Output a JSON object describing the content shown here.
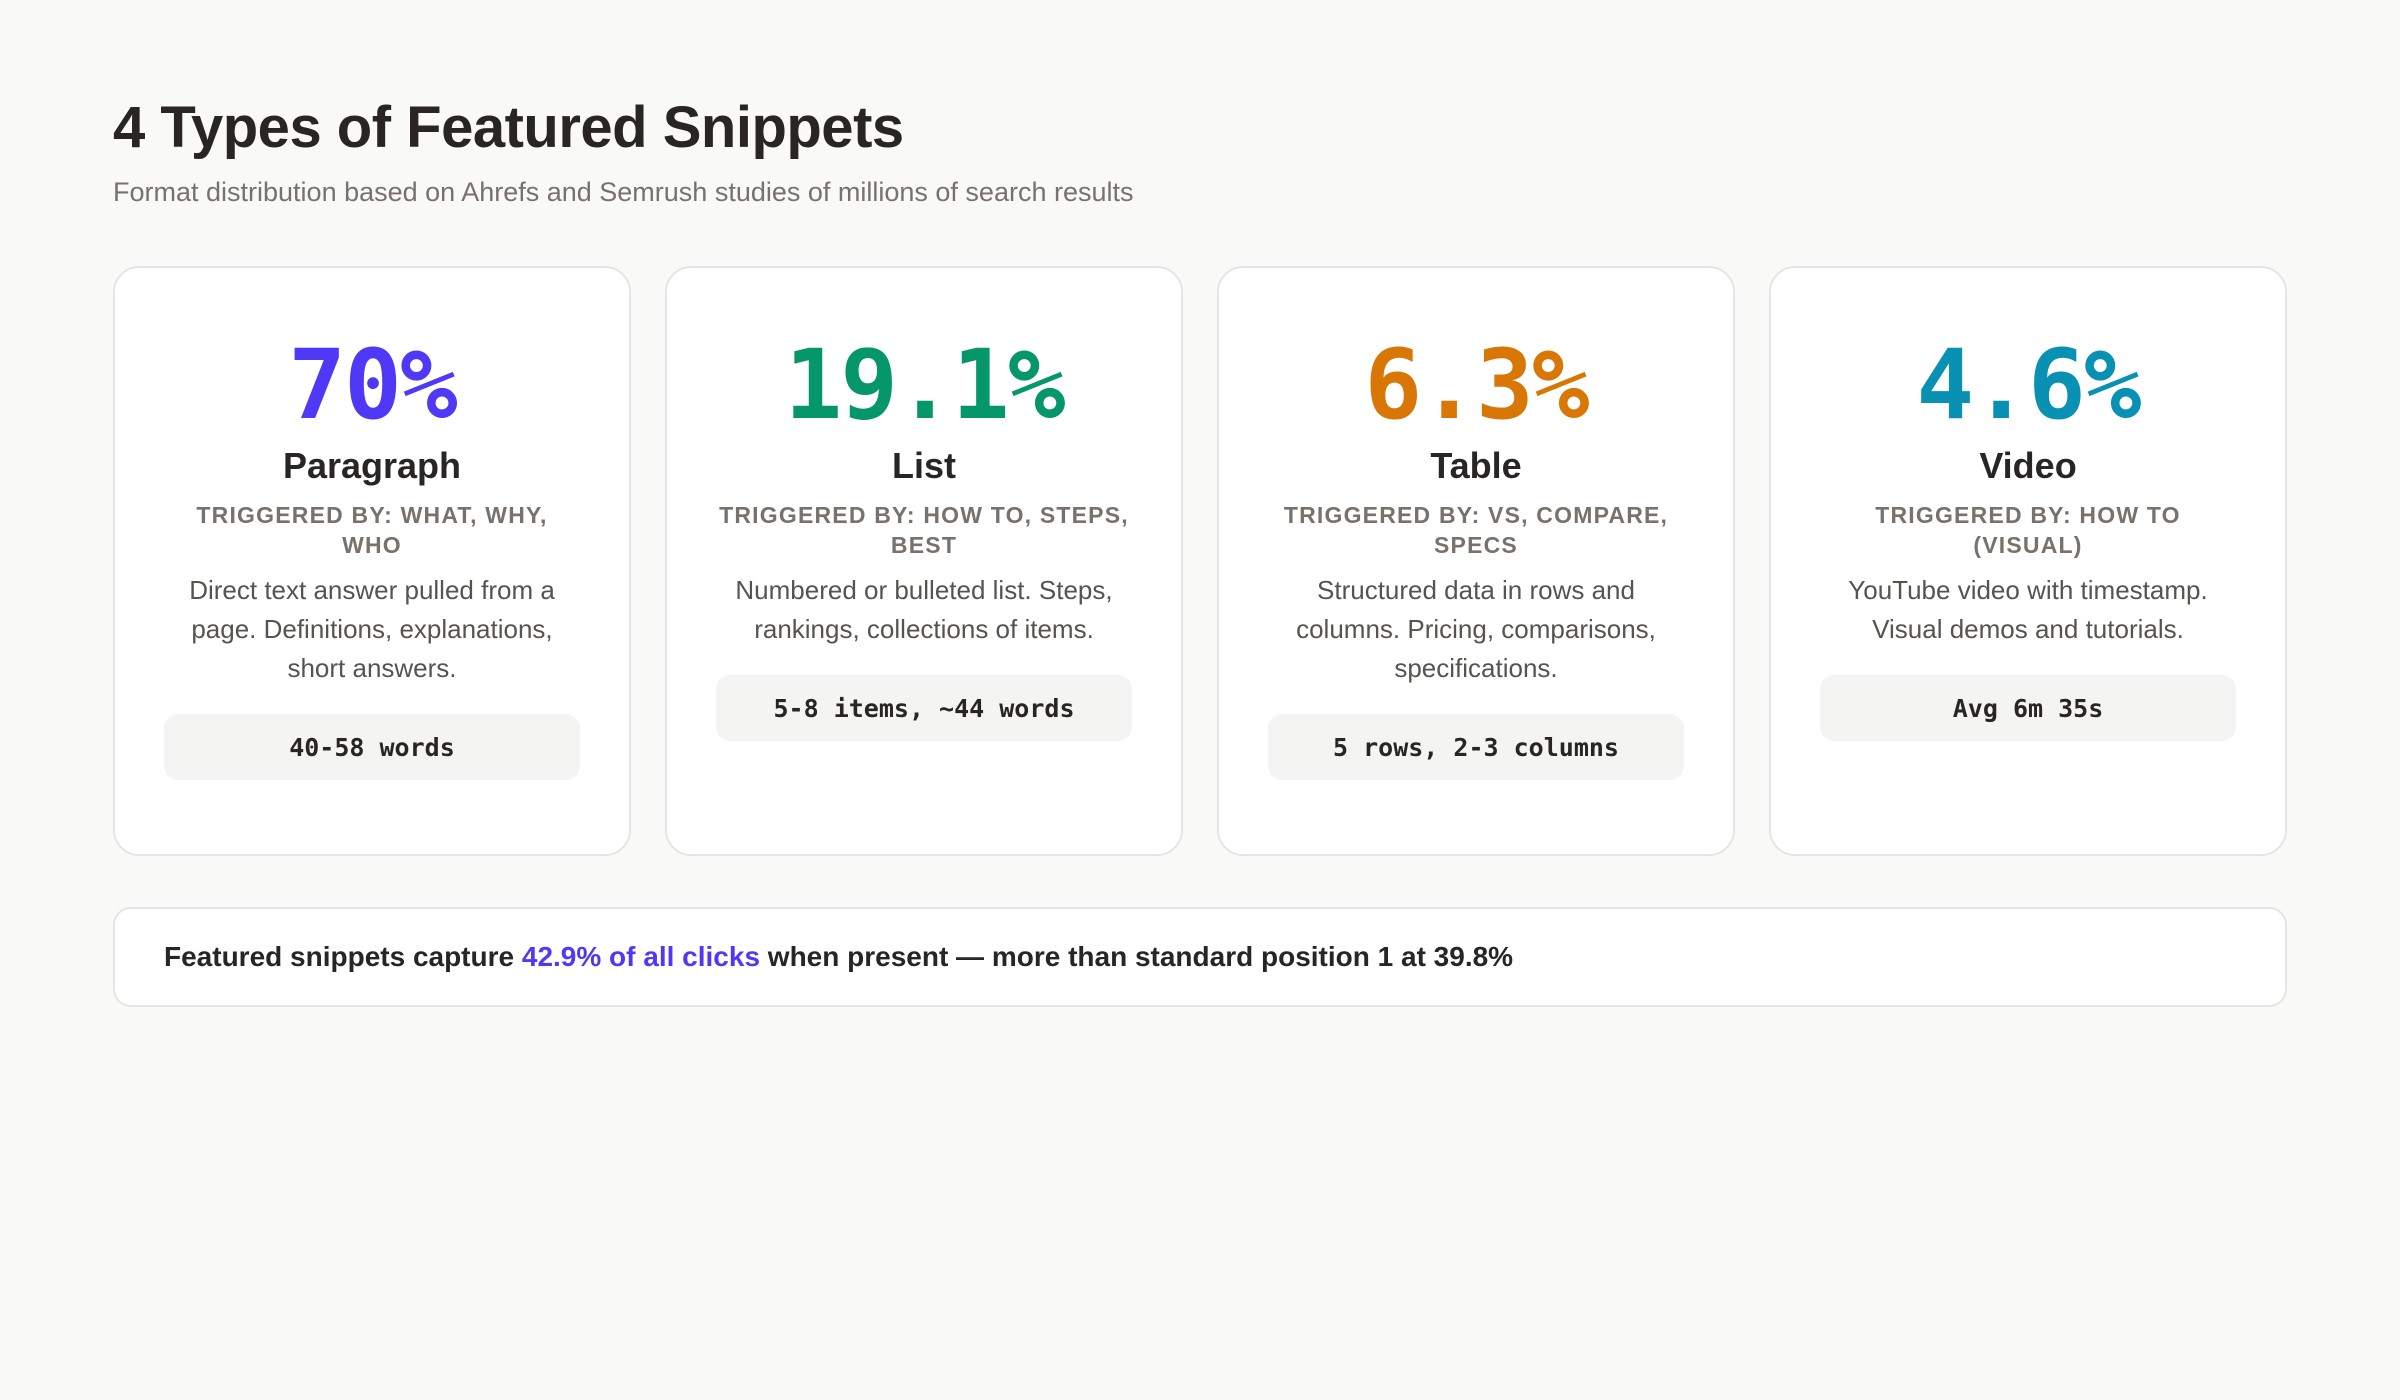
{
  "header": {
    "title": "4 Types of Featured Snippets",
    "subtitle": "Format distribution based on Ahrefs and Semrush studies of millions of search results"
  },
  "colors": {
    "paragraph": "#4f39f6",
    "list": "#059669",
    "table": "#d97706",
    "video": "#0891b2",
    "background": "#f9f9f7",
    "card_border": "#e7e5e3",
    "pill_background": "#f4f4f3"
  },
  "cards": [
    {
      "value": "70%",
      "label": "Paragraph",
      "trigger": "Triggered by: What, Why, Who",
      "description": "Direct text answer pulled from a page. Definitions, explanations, short answers.",
      "stat": "40-58 words",
      "color": "#4f39f6"
    },
    {
      "value": "19.1%",
      "label": "List",
      "trigger": "Triggered by: How to, Steps, Best",
      "description": "Numbered or bulleted list. Steps, rankings, collections of items.",
      "stat": "5-8 items, ~44 words",
      "color": "#059669"
    },
    {
      "value": "6.3%",
      "label": "Table",
      "trigger": "Triggered by: vs, Compare, Specs",
      "description": "Structured data in rows and columns. Pricing, comparisons, specifications.",
      "stat": "5 rows, 2-3 columns",
      "color": "#d97706"
    },
    {
      "value": "4.6%",
      "label": "Video",
      "trigger": "Triggered by: How to (visual)",
      "description": "YouTube video with timestamp. Visual demos and tutorials.",
      "stat": "Avg 6m 35s",
      "color": "#0891b2"
    }
  ],
  "callout": {
    "prefix": "Featured snippets capture ",
    "highlight": "42.9% of all clicks",
    "suffix": " when present — more than standard position 1 at 39.8%"
  }
}
